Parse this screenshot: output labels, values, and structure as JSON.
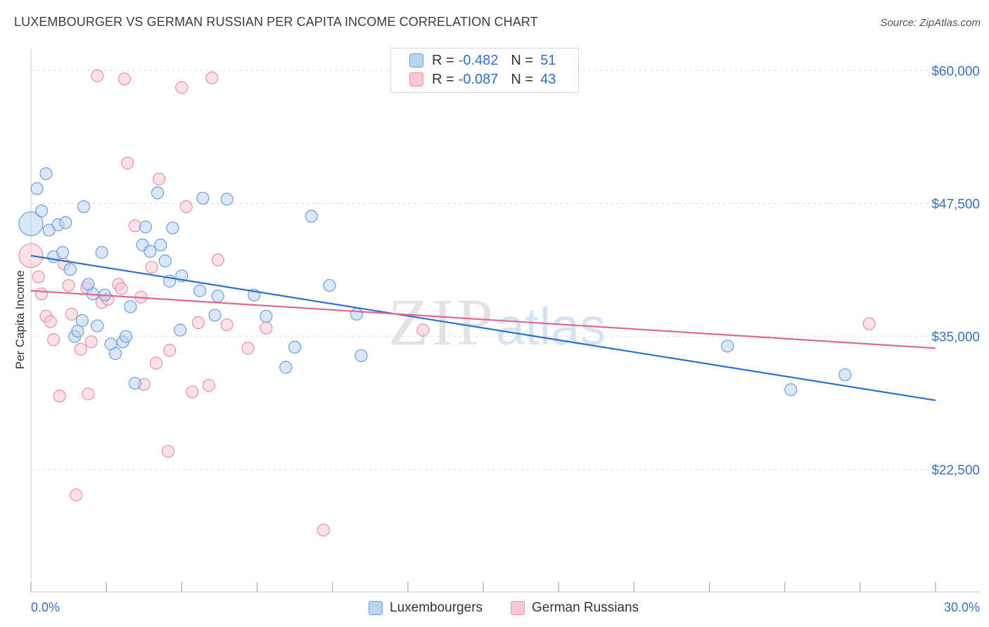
{
  "title": "LUXEMBOURGER VS GERMAN RUSSIAN PER CAPITA INCOME CORRELATION CHART",
  "source": "Source: ZipAtlas.com",
  "watermark": {
    "zip": "ZIP",
    "atlas": "atlas"
  },
  "legend": {
    "rows": [
      {
        "r_label": "R =",
        "r_value": "-0.482",
        "n_label": "N =",
        "n_value": "51"
      },
      {
        "r_label": "R =",
        "r_value": "-0.087",
        "n_label": "N =",
        "n_value": "43"
      }
    ]
  },
  "colors": {
    "blue_fill": "#b9d3f3",
    "blue_stroke": "#6d9fe0",
    "blue_line": "#2d6fcf",
    "pink_fill": "#f9c8d6",
    "pink_stroke": "#e891ac",
    "pink_line": "#e0688f",
    "grid": "#dddddd",
    "axis_text": "#3a6fc6"
  },
  "chart_data": {
    "type": "scatter",
    "title": "LUXEMBOURGER VS GERMAN RUSSIAN PER CAPITA INCOME CORRELATION CHART",
    "xlabel": "",
    "ylabel": "Per Capita Income",
    "xlim": [
      0,
      30
    ],
    "ylim": [
      11000,
      62000
    ],
    "x_tick_labels": [
      "0.0%",
      "30.0%"
    ],
    "y_ticks": [
      22500,
      35000,
      47500,
      60000
    ],
    "y_tick_labels": [
      "$22,500",
      "$35,000",
      "$47,500",
      "$60,000"
    ],
    "grid": true,
    "legend_position": "bottom",
    "series": [
      {
        "name": "Luxembourgers",
        "color": "#6d9fe0",
        "trend": {
          "x": [
            0,
            30
          ],
          "y": [
            42600,
            29000
          ]
        },
        "points": [
          {
            "x": 0.0,
            "y": 45600,
            "big": true
          },
          {
            "x": 0.2,
            "y": 48900
          },
          {
            "x": 0.35,
            "y": 46800
          },
          {
            "x": 0.5,
            "y": 50300
          },
          {
            "x": 0.6,
            "y": 45000
          },
          {
            "x": 0.75,
            "y": 42500
          },
          {
            "x": 0.9,
            "y": 45500
          },
          {
            "x": 1.05,
            "y": 42900
          },
          {
            "x": 1.15,
            "y": 45700
          },
          {
            "x": 1.3,
            "y": 41300
          },
          {
            "x": 1.45,
            "y": 35000
          },
          {
            "x": 1.55,
            "y": 35500
          },
          {
            "x": 1.7,
            "y": 36500
          },
          {
            "x": 1.9,
            "y": 39900
          },
          {
            "x": 2.05,
            "y": 39000
          },
          {
            "x": 2.2,
            "y": 36000
          },
          {
            "x": 2.35,
            "y": 42900
          },
          {
            "x": 2.45,
            "y": 38900
          },
          {
            "x": 2.65,
            "y": 34300
          },
          {
            "x": 2.8,
            "y": 33400
          },
          {
            "x": 3.05,
            "y": 34500
          },
          {
            "x": 3.15,
            "y": 35000
          },
          {
            "x": 3.3,
            "y": 37800
          },
          {
            "x": 3.45,
            "y": 30600
          },
          {
            "x": 3.7,
            "y": 43600
          },
          {
            "x": 3.8,
            "y": 45300
          },
          {
            "x": 3.95,
            "y": 43000
          },
          {
            "x": 4.2,
            "y": 48500
          },
          {
            "x": 4.3,
            "y": 43600
          },
          {
            "x": 4.45,
            "y": 42100
          },
          {
            "x": 4.6,
            "y": 40200
          },
          {
            "x": 4.7,
            "y": 45200
          },
          {
            "x": 4.95,
            "y": 35600
          },
          {
            "x": 5.0,
            "y": 40700
          },
          {
            "x": 1.75,
            "y": 47200
          },
          {
            "x": 5.6,
            "y": 39300
          },
          {
            "x": 5.7,
            "y": 48000
          },
          {
            "x": 6.1,
            "y": 37000
          },
          {
            "x": 6.2,
            "y": 38800
          },
          {
            "x": 6.5,
            "y": 47900
          },
          {
            "x": 7.4,
            "y": 38900
          },
          {
            "x": 7.8,
            "y": 36900
          },
          {
            "x": 8.45,
            "y": 32100
          },
          {
            "x": 8.75,
            "y": 34000
          },
          {
            "x": 9.3,
            "y": 46300
          },
          {
            "x": 9.9,
            "y": 39800
          },
          {
            "x": 10.8,
            "y": 37100
          },
          {
            "x": 10.95,
            "y": 33200
          },
          {
            "x": 23.1,
            "y": 34100
          },
          {
            "x": 25.2,
            "y": 30000
          },
          {
            "x": 27.0,
            "y": 31400
          }
        ]
      },
      {
        "name": "German Russians",
        "color": "#e891ac",
        "trend": {
          "x": [
            0,
            30
          ],
          "y": [
            39300,
            33900
          ]
        },
        "points": [
          {
            "x": 0.0,
            "y": 42600,
            "big": true
          },
          {
            "x": 0.25,
            "y": 40600
          },
          {
            "x": 0.35,
            "y": 39000
          },
          {
            "x": 0.5,
            "y": 36900
          },
          {
            "x": 0.65,
            "y": 36400
          },
          {
            "x": 0.75,
            "y": 34700
          },
          {
            "x": 0.95,
            "y": 29400
          },
          {
            "x": 1.1,
            "y": 41800
          },
          {
            "x": 1.25,
            "y": 39800
          },
          {
            "x": 1.35,
            "y": 37100
          },
          {
            "x": 1.5,
            "y": 20100
          },
          {
            "x": 1.65,
            "y": 33800
          },
          {
            "x": 1.85,
            "y": 39600
          },
          {
            "x": 1.9,
            "y": 29600
          },
          {
            "x": 2.0,
            "y": 34500
          },
          {
            "x": 2.2,
            "y": 59500
          },
          {
            "x": 2.35,
            "y": 38200
          },
          {
            "x": 2.55,
            "y": 38500
          },
          {
            "x": 2.9,
            "y": 39900
          },
          {
            "x": 3.0,
            "y": 39500
          },
          {
            "x": 3.1,
            "y": 59200
          },
          {
            "x": 3.2,
            "y": 51300
          },
          {
            "x": 3.45,
            "y": 45400
          },
          {
            "x": 3.65,
            "y": 38700
          },
          {
            "x": 3.75,
            "y": 30500
          },
          {
            "x": 4.0,
            "y": 41500
          },
          {
            "x": 4.15,
            "y": 32500
          },
          {
            "x": 4.25,
            "y": 49800
          },
          {
            "x": 4.55,
            "y": 24200
          },
          {
            "x": 4.6,
            "y": 33700
          },
          {
            "x": 5.0,
            "y": 58400
          },
          {
            "x": 5.15,
            "y": 47200
          },
          {
            "x": 5.35,
            "y": 29800
          },
          {
            "x": 5.55,
            "y": 36300
          },
          {
            "x": 5.9,
            "y": 30400
          },
          {
            "x": 6.0,
            "y": 59300
          },
          {
            "x": 6.2,
            "y": 42200
          },
          {
            "x": 6.5,
            "y": 36100
          },
          {
            "x": 7.2,
            "y": 33900
          },
          {
            "x": 7.8,
            "y": 35800
          },
          {
            "x": 9.7,
            "y": 16800
          },
          {
            "x": 13.0,
            "y": 35600
          },
          {
            "x": 27.8,
            "y": 36200
          }
        ]
      }
    ]
  }
}
